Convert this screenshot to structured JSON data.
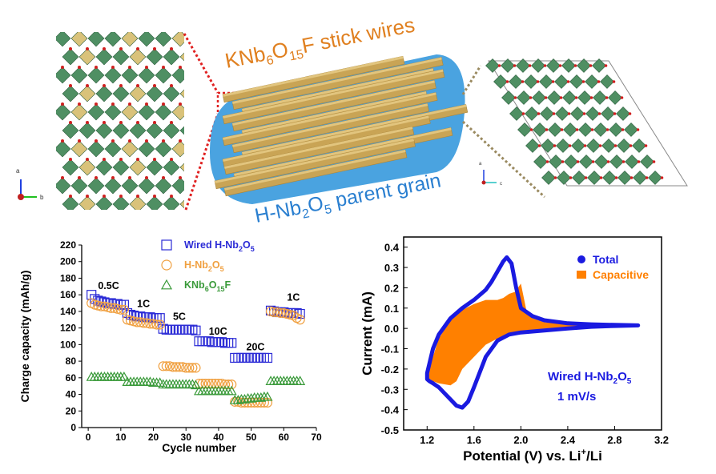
{
  "colors": {
    "wired": "#2b2bd6",
    "hnb": "#f0a040",
    "knb": "#3a9a3a",
    "total": "#1a1ae0",
    "capacitive": "#ff8000",
    "octa": "#4f8f63",
    "tetra": "#d9c27a",
    "rod": "#c9a455",
    "grain": "#4aa3e0",
    "label_orange": "#e08020",
    "label_blue": "#2a7fd0"
  },
  "illustration": {
    "wires_label_parts": [
      "KNb",
      "6",
      "O",
      "15",
      "F stick wires"
    ],
    "grain_label_parts": [
      "H-Nb",
      "2",
      "O",
      "5",
      " parent grain"
    ],
    "axis_left": {
      "a": "a",
      "b": "b"
    },
    "axis_right": {
      "a": "a",
      "c": "c"
    }
  },
  "chart_data": [
    {
      "type": "scatter",
      "xlabel": "Cycle number",
      "ylabel": "Charge capacity (mAh/g)",
      "xlim": [
        -2,
        70
      ],
      "ylim": [
        0,
        220
      ],
      "xticks": [
        0,
        10,
        20,
        30,
        40,
        50,
        60,
        70
      ],
      "yticks": [
        0,
        20,
        40,
        60,
        80,
        100,
        120,
        140,
        160,
        180,
        200,
        220
      ],
      "legend_position": "top-right",
      "legend": [
        {
          "marker": "square",
          "parts": [
            "Wired H-Nb",
            "2",
            "O",
            "5",
            ""
          ]
        },
        {
          "marker": "circle",
          "parts": [
            "H-Nb",
            "2",
            "O",
            "5",
            ""
          ]
        },
        {
          "marker": "triangle",
          "parts": [
            "KNb",
            "6",
            "O",
            "15",
            "F"
          ]
        }
      ],
      "annotations": [
        {
          "text": "0.5C",
          "x": 3,
          "y": 167
        },
        {
          "text": "1C",
          "x": 15,
          "y": 145
        },
        {
          "text": "5C",
          "x": 26,
          "y": 130
        },
        {
          "text": "10C",
          "x": 37,
          "y": 112
        },
        {
          "text": "20C",
          "x": 48.5,
          "y": 93
        },
        {
          "text": "1C",
          "x": 61,
          "y": 153
        }
      ],
      "series": [
        {
          "marker": "square",
          "segments": [
            {
              "x": [
                1,
                2,
                3,
                4,
                5,
                6,
                7,
                8,
                9,
                10,
                11
              ],
              "y": [
                160,
                155,
                153,
                152,
                151,
                150,
                150,
                149,
                149,
                148,
                148
              ]
            },
            {
              "x": [
                12,
                13,
                14,
                15,
                16,
                17,
                18,
                19,
                20,
                21,
                22
              ],
              "y": [
                138,
                136,
                135,
                134,
                134,
                133,
                133,
                133,
                132,
                132,
                132
              ]
            },
            {
              "x": [
                23,
                24,
                25,
                26,
                27,
                28,
                29,
                30,
                31,
                32,
                33
              ],
              "y": [
                119,
                118,
                118,
                118,
                118,
                118,
                118,
                118,
                118,
                118,
                117
              ]
            },
            {
              "x": [
                34,
                35,
                36,
                37,
                38,
                39,
                40,
                41,
                42,
                43,
                44
              ],
              "y": [
                104,
                104,
                104,
                104,
                103,
                103,
                103,
                103,
                102,
                102,
                102
              ]
            },
            {
              "x": [
                45,
                46,
                47,
                48,
                49,
                50,
                51,
                52,
                53,
                54,
                55
              ],
              "y": [
                84,
                84,
                84,
                84,
                84,
                84,
                84,
                84,
                84,
                84,
                84
              ]
            },
            {
              "x": [
                56,
                57,
                58,
                59,
                60,
                61,
                62,
                63,
                64,
                65
              ],
              "y": [
                141,
                140,
                139,
                139,
                139,
                138,
                138,
                138,
                138,
                137
              ]
            }
          ]
        },
        {
          "marker": "circle",
          "segments": [
            {
              "x": [
                1,
                2,
                3,
                4,
                5,
                6,
                7,
                8,
                9,
                10,
                11
              ],
              "y": [
                150,
                148,
                147,
                146,
                146,
                145,
                144,
                144,
                143,
                142,
                142
              ]
            },
            {
              "x": [
                12,
                13,
                14,
                15,
                16,
                17,
                18,
                19,
                20,
                21,
                22
              ],
              "y": [
                130,
                129,
                128,
                127,
                127,
                126,
                126,
                125,
                125,
                124,
                124
              ]
            },
            {
              "x": [
                23,
                24,
                25,
                26,
                27,
                28,
                29,
                30,
                31,
                32,
                33
              ],
              "y": [
                74,
                74,
                74,
                73,
                73,
                73,
                73,
                72,
                72,
                72,
                72
              ]
            },
            {
              "x": [
                34,
                35,
                36,
                37,
                38,
                39,
                40,
                41,
                42,
                43,
                44
              ],
              "y": [
                53,
                53,
                53,
                53,
                53,
                53,
                53,
                53,
                52,
                52,
                52
              ]
            },
            {
              "x": [
                45,
                46,
                47,
                48,
                49,
                50,
                51,
                52,
                53,
                54,
                55
              ],
              "y": [
                31,
                31,
                30,
                30,
                30,
                30,
                30,
                30,
                30,
                30,
                30
              ]
            },
            {
              "x": [
                56,
                57,
                58,
                59,
                60,
                61,
                62,
                63,
                64,
                65
              ],
              "y": [
                140,
                139,
                139,
                138,
                138,
                137,
                136,
                135,
                132,
                130
              ]
            }
          ]
        },
        {
          "marker": "triangle",
          "segments": [
            {
              "x": [
                1,
                2,
                3,
                4,
                5,
                6,
                7,
                8,
                9,
                10,
                11
              ],
              "y": [
                61,
                61,
                61,
                61,
                61,
                61,
                61,
                61,
                61,
                61,
                61
              ]
            },
            {
              "x": [
                12,
                13,
                14,
                15,
                16,
                17,
                18,
                19,
                20,
                21,
                22
              ],
              "y": [
                55,
                55,
                55,
                55,
                55,
                55,
                55,
                55,
                54,
                54,
                54
              ]
            },
            {
              "x": [
                23,
                24,
                25,
                26,
                27,
                28,
                29,
                30,
                31,
                32,
                33
              ],
              "y": [
                52,
                52,
                52,
                52,
                52,
                52,
                52,
                52,
                52,
                52,
                51
              ]
            },
            {
              "x": [
                34,
                35,
                36,
                37,
                38,
                39,
                40,
                41,
                42,
                43,
                44
              ],
              "y": [
                44,
                44,
                44,
                44,
                44,
                44,
                44,
                44,
                44,
                44,
                44
              ]
            },
            {
              "x": [
                45,
                46,
                47,
                48,
                49,
                50,
                51,
                52,
                53,
                54,
                55
              ],
              "y": [
                33,
                33,
                34,
                34,
                35,
                35,
                36,
                36,
                36,
                37,
                37
              ]
            },
            {
              "x": [
                56,
                57,
                58,
                59,
                60,
                61,
                62,
                63,
                64,
                65
              ],
              "y": [
                56,
                56,
                56,
                56,
                56,
                56,
                56,
                56,
                56,
                56
              ]
            }
          ]
        }
      ]
    },
    {
      "type": "area",
      "xlabel_parts": [
        "Potential (V) vs. Li",
        "+",
        "/Li"
      ],
      "ylabel": "Current (mA)",
      "xlim": [
        1.0,
        3.2
      ],
      "ylim": [
        -0.5,
        0.45
      ],
      "xticks": [
        1.2,
        1.6,
        2.0,
        2.4,
        2.8,
        3.2
      ],
      "xtick_labels": [
        "1.2",
        "1.6",
        "2.0",
        "2.4",
        "2.8",
        "3.2"
      ],
      "yticks": [
        -0.5,
        -0.4,
        -0.3,
        -0.2,
        -0.1,
        0.0,
        0.1,
        0.2,
        0.3,
        0.4
      ],
      "ytick_labels": [
        "-0.5",
        "-0.4",
        "-0.3",
        "-0.2",
        "-0.1",
        "0.0",
        "0.1",
        "0.2",
        "0.3",
        "0.4"
      ],
      "legend_position": "top-right",
      "legend": [
        {
          "marker": "dot",
          "text": "Total"
        },
        {
          "marker": "square",
          "text": "Capacitive"
        }
      ],
      "sample_label_parts": [
        "Wired H-Nb",
        "2",
        "O",
        "5",
        ""
      ],
      "rate_label": "1 mV/s",
      "series": [
        {
          "name": "Total",
          "x": [
            1.2,
            1.25,
            1.3,
            1.4,
            1.5,
            1.6,
            1.7,
            1.75,
            1.8,
            1.85,
            1.88,
            1.92,
            1.96,
            2.0,
            2.1,
            2.2,
            2.4,
            2.6,
            2.8,
            3.0,
            2.8,
            2.6,
            2.4,
            2.2,
            2.0,
            1.9,
            1.8,
            1.7,
            1.6,
            1.55,
            1.5,
            1.45,
            1.4,
            1.35,
            1.3,
            1.25,
            1.22,
            1.2
          ],
          "y": [
            -0.22,
            -0.1,
            -0.03,
            0.05,
            0.1,
            0.14,
            0.19,
            0.23,
            0.28,
            0.33,
            0.35,
            0.32,
            0.2,
            0.1,
            0.06,
            0.04,
            0.025,
            0.02,
            0.017,
            0.015,
            0.012,
            0.008,
            0.0,
            -0.01,
            -0.02,
            -0.03,
            -0.06,
            -0.14,
            -0.29,
            -0.36,
            -0.39,
            -0.38,
            -0.35,
            -0.32,
            -0.29,
            -0.27,
            -0.26,
            -0.25
          ]
        },
        {
          "name": "Capacitive",
          "x": [
            1.2,
            1.3,
            1.4,
            1.5,
            1.6,
            1.7,
            1.8,
            1.85,
            1.9,
            1.95,
            2.0,
            2.05,
            2.1,
            2.2,
            2.4,
            2.6,
            2.8,
            3.0,
            2.8,
            2.6,
            2.4,
            2.2,
            2.0,
            1.9,
            1.8,
            1.7,
            1.6,
            1.5,
            1.45,
            1.4,
            1.3,
            1.25,
            1.2
          ],
          "y": [
            -0.23,
            -0.05,
            0.04,
            0.09,
            0.12,
            0.14,
            0.14,
            0.15,
            0.17,
            0.18,
            0.22,
            0.08,
            0.05,
            0.03,
            0.02,
            0.015,
            0.013,
            0.012,
            0.008,
            0.004,
            -0.002,
            -0.01,
            -0.02,
            -0.03,
            -0.05,
            -0.08,
            -0.14,
            -0.2,
            -0.26,
            -0.28,
            -0.27,
            -0.26,
            -0.24
          ]
        }
      ]
    }
  ]
}
